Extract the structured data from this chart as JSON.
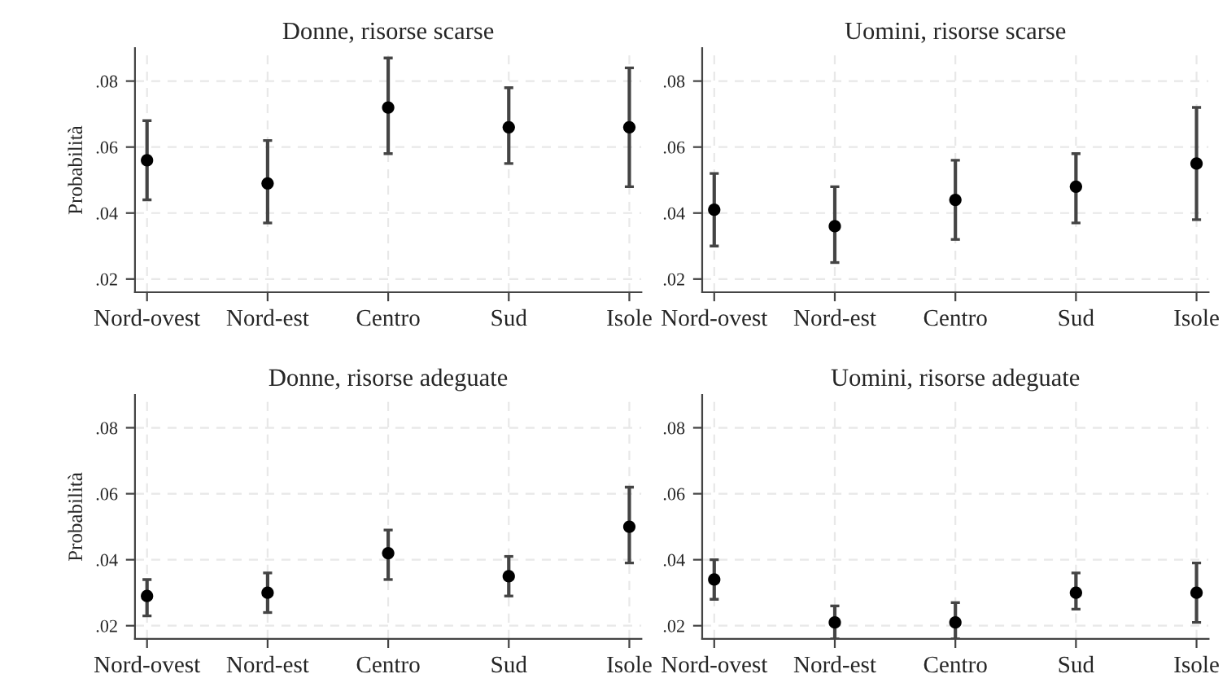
{
  "chart_data": [
    {
      "type": "scatter",
      "title": "Donne, risorse scarse",
      "ylabel": "Probabilità",
      "categories": [
        "Nord-ovest",
        "Nord-est",
        "Centro",
        "Sud",
        "Isole"
      ],
      "values": [
        0.056,
        0.049,
        0.072,
        0.066,
        0.066
      ],
      "errors": [
        [
          0.044,
          0.068
        ],
        [
          0.037,
          0.062
        ],
        [
          0.058,
          0.087
        ],
        [
          0.055,
          0.078
        ],
        [
          0.048,
          0.084
        ]
      ],
      "color": "#000000",
      "marker": "circle",
      "ylim": [
        0.016,
        0.09
      ],
      "yticks": [
        {
          "value": 0.02,
          "label": ".02"
        },
        {
          "value": 0.04,
          "label": ".04"
        },
        {
          "value": 0.06,
          "label": ".06"
        },
        {
          "value": 0.08,
          "label": ".08"
        }
      ],
      "grid": true
    },
    {
      "type": "scatter",
      "title": "Uomini, risorse scarse",
      "categories": [
        "Nord-ovest",
        "Nord-est",
        "Centro",
        "Sud",
        "Isole"
      ],
      "values": [
        0.041,
        0.036,
        0.044,
        0.048,
        0.055
      ],
      "errors": [
        [
          0.03,
          0.052
        ],
        [
          0.025,
          0.048
        ],
        [
          0.032,
          0.056
        ],
        [
          0.037,
          0.058
        ],
        [
          0.038,
          0.072
        ]
      ],
      "color": "#000000",
      "marker": "circle",
      "ylim": [
        0.016,
        0.09
      ],
      "yticks": [
        {
          "value": 0.02,
          "label": ".02"
        },
        {
          "value": 0.04,
          "label": ".04"
        },
        {
          "value": 0.06,
          "label": ".06"
        },
        {
          "value": 0.08,
          "label": ".08"
        }
      ],
      "grid": true
    },
    {
      "type": "scatter",
      "title": "Donne, risorse adeguate",
      "ylabel": "Probabilità",
      "categories": [
        "Nord-ovest",
        "Nord-est",
        "Centro",
        "Sud",
        "Isole"
      ],
      "values": [
        0.029,
        0.03,
        0.042,
        0.035,
        0.05
      ],
      "errors": [
        [
          0.023,
          0.034
        ],
        [
          0.024,
          0.036
        ],
        [
          0.034,
          0.049
        ],
        [
          0.029,
          0.041
        ],
        [
          0.039,
          0.062
        ]
      ],
      "color": "#000000",
      "marker": "circle",
      "ylim": [
        0.016,
        0.09
      ],
      "yticks": [
        {
          "value": 0.02,
          "label": ".02"
        },
        {
          "value": 0.04,
          "label": ".04"
        },
        {
          "value": 0.06,
          "label": ".06"
        },
        {
          "value": 0.08,
          "label": ".08"
        }
      ],
      "grid": true
    },
    {
      "type": "scatter",
      "title": "Uomini, risorse adeguate",
      "categories": [
        "Nord-ovest",
        "Nord-est",
        "Centro",
        "Sud",
        "Isole"
      ],
      "values": [
        0.034,
        0.021,
        0.021,
        0.03,
        0.03
      ],
      "errors": [
        [
          0.028,
          0.04
        ],
        [
          0.016,
          0.026
        ],
        [
          0.016,
          0.027
        ],
        [
          0.025,
          0.036
        ],
        [
          0.021,
          0.039
        ]
      ],
      "color": "#000000",
      "marker": "circle",
      "ylim": [
        0.016,
        0.09
      ],
      "yticks": [
        {
          "value": 0.02,
          "label": ".02"
        },
        {
          "value": 0.04,
          "label": ".04"
        },
        {
          "value": 0.06,
          "label": ".06"
        },
        {
          "value": 0.08,
          "label": ".08"
        }
      ],
      "grid": true
    }
  ]
}
